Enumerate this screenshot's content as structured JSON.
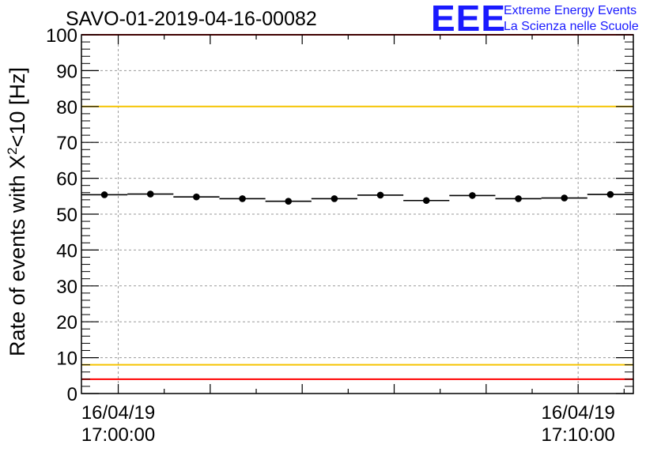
{
  "title": "SAVO-01-2019-04-16-00082",
  "logo": {
    "text": "EEE",
    "line1": "Extreme Energy Events",
    "line2": "La Scienza nelle Scuole"
  },
  "chart_data": {
    "type": "scatter",
    "title": "SAVO-01-2019-04-16-00082",
    "ylabel_prefix": "Rate of events with ",
    "ylabel_chi": "X",
    "ylabel_sup": "2",
    "ylabel_suffix": "<10 [Hz]",
    "xlabel": "",
    "ylim": [
      0,
      100
    ],
    "yticks": [
      "0",
      "10",
      "20",
      "30",
      "40",
      "50",
      "60",
      "70",
      "80",
      "90",
      "100"
    ],
    "xlim_minutes": [
      -0.8,
      11.2
    ],
    "xticks": [
      {
        "minute": 0,
        "date": "16/04/19",
        "time": "17:00:00"
      },
      {
        "minute": 10,
        "date": "16/04/19",
        "time": "17:10:00"
      }
    ],
    "grid": true,
    "bin_width_minutes": 1.0,
    "series": [
      {
        "name": "rate",
        "x_minutes": [
          -0.3,
          0.7,
          1.7,
          2.7,
          3.7,
          4.7,
          5.7,
          6.7,
          7.7,
          8.7,
          9.7,
          10.7
        ],
        "values": [
          55.4,
          55.6,
          54.8,
          54.3,
          53.6,
          54.3,
          55.3,
          53.8,
          55.2,
          54.3,
          54.5,
          55.5
        ]
      }
    ],
    "reference_lines": [
      {
        "value": 100,
        "color": "#ff0000"
      },
      {
        "value": 80,
        "color": "#f5c400"
      },
      {
        "value": 8,
        "color": "#f5c400"
      },
      {
        "value": 4,
        "color": "#ff0000"
      }
    ]
  }
}
